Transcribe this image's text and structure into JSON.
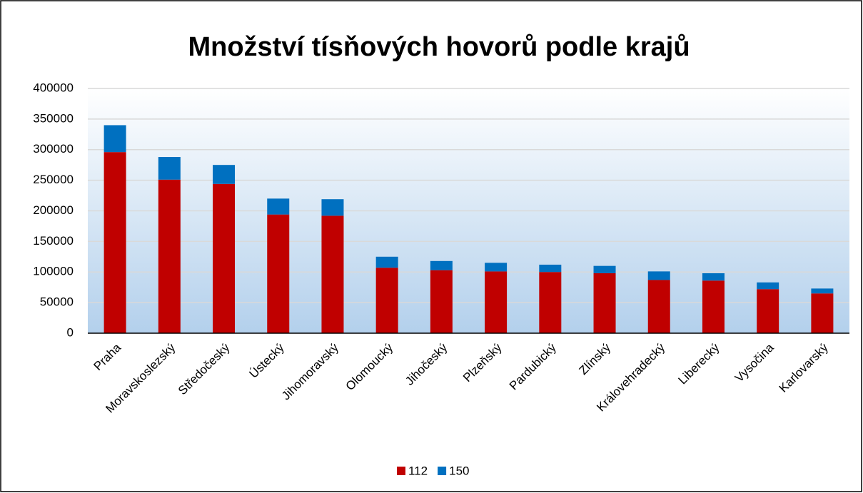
{
  "chart_data": {
    "type": "stacked_bar",
    "title": "Množství tísňových hovorů podle krajů",
    "categories": [
      "Praha",
      "Moravskoslezský",
      "Středočeský",
      "Ústecký",
      "Jihomoravský",
      "Olomoucký",
      "Jihočeský",
      "Plzeňský",
      "Pardubický",
      "Zlínský",
      "Královehradecký",
      "Liberecký",
      "Vysočina",
      "Karlovarský"
    ],
    "series": [
      {
        "name": "112",
        "color": "#c00000",
        "values": [
          296000,
          251000,
          244000,
          194000,
          192000,
          107000,
          103000,
          101000,
          100000,
          98000,
          87000,
          86000,
          72000,
          65000
        ]
      },
      {
        "name": "150",
        "color": "#0070c0",
        "values": [
          44000,
          37000,
          31000,
          26000,
          27000,
          18000,
          15000,
          14000,
          12000,
          12000,
          14000,
          12000,
          11000,
          8000
        ]
      }
    ],
    "ylim": [
      0,
      400000
    ],
    "yticks": [
      0,
      50000,
      100000,
      150000,
      200000,
      250000,
      300000,
      350000,
      400000
    ],
    "grid": true,
    "legend": "bottom"
  }
}
